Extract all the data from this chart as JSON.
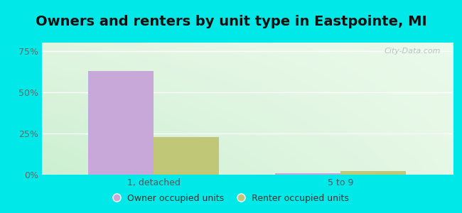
{
  "title": "Owners and renters by unit type in Eastpointe, MI",
  "categories": [
    "1, detached",
    "5 to 9"
  ],
  "owner_values": [
    63.0,
    0.8
  ],
  "renter_values": [
    23.0,
    2.0
  ],
  "owner_color": "#c8a8d8",
  "renter_color": "#c0c878",
  "bg_color": "#00e8e8",
  "yticks": [
    0,
    25,
    50,
    75
  ],
  "ytick_labels": [
    "0%",
    "25%",
    "50%",
    "75%"
  ],
  "ylim": [
    0,
    80
  ],
  "bar_width": 0.35,
  "legend_owner": "Owner occupied units",
  "legend_renter": "Renter occupied units",
  "watermark": "City-Data.com",
  "title_fontsize": 14,
  "axis_fontsize": 9,
  "grad_tl": [
    0.88,
    0.96,
    0.88
  ],
  "grad_tr": [
    0.92,
    0.98,
    0.92
  ],
  "grad_bl": [
    0.8,
    0.94,
    0.82
  ],
  "grad_br": [
    0.9,
    0.97,
    0.9
  ]
}
